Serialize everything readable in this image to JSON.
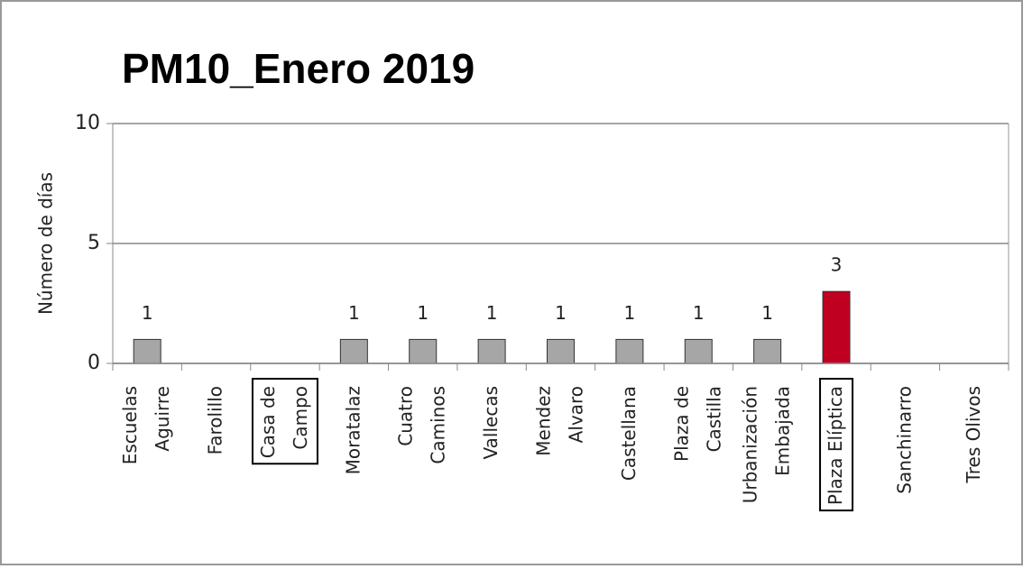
{
  "chart_data": {
    "type": "bar",
    "title": "PM10_Enero 2019",
    "y_label": "Número de días",
    "categories": [
      "Escuelas\nAguirre",
      "Farolillo",
      "Casa de\nCampo",
      "Moratalaz",
      "Cuatro\nCaminos",
      "Vallecas",
      "Mendez\nAlvaro",
      "Castellana",
      "Plaza de\nCastilla",
      "Urbanización\nEmbajada",
      "Plaza Elíptica",
      "Sanchinarro",
      "Tres Olivos"
    ],
    "values": [
      1,
      0,
      0,
      1,
      1,
      1,
      1,
      1,
      1,
      1,
      3,
      0,
      0
    ],
    "colors": [
      "#a6a6a6",
      "#a6a6a6",
      "#a6a6a6",
      "#a6a6a6",
      "#a6a6a6",
      "#a6a6a6",
      "#a6a6a6",
      "#a6a6a6",
      "#a6a6a6",
      "#a6a6a6",
      "#c00020",
      "#a6a6a6",
      "#a6a6a6"
    ],
    "boxed": [
      false,
      false,
      true,
      false,
      false,
      false,
      false,
      false,
      false,
      false,
      true,
      false,
      false
    ],
    "ylim": [
      0,
      10
    ],
    "yticks": [
      0,
      5,
      10
    ],
    "grid": true
  }
}
